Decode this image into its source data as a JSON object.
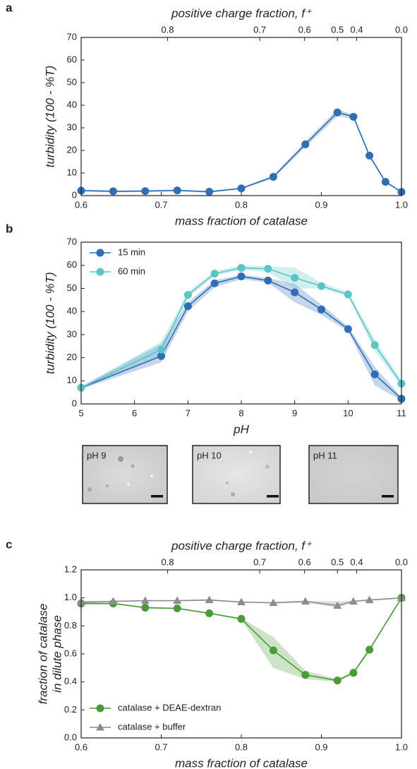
{
  "chart_data": [
    {
      "type": "line",
      "panel": "a",
      "x2_label": "positive charge fraction, f⁺",
      "x_label": "mass fraction of catalase",
      "y_label": [
        "turbidity (100 - %T)"
      ],
      "x": [
        0.6,
        0.64,
        0.68,
        0.72,
        0.76,
        0.8,
        0.84,
        0.88,
        0.92,
        0.94,
        0.96,
        0.98,
        1.0
      ],
      "series": [
        {
          "color": "#2f6db5",
          "marker": "circle",
          "values": [
            2.2,
            1.9,
            2.0,
            2.3,
            1.7,
            3.2,
            8.3,
            22.7,
            36.8,
            34.9,
            17.7,
            6.1,
            1.6
          ],
          "lower": [
            1.8,
            1.5,
            1.6,
            1.9,
            1.3,
            2.8,
            7.6,
            21.5,
            35.2,
            34.0,
            17.0,
            5.6,
            1.3
          ],
          "upper": [
            2.6,
            2.3,
            2.4,
            2.7,
            2.1,
            3.6,
            9.0,
            24.0,
            38.2,
            35.8,
            18.4,
            6.6,
            1.9
          ]
        }
      ],
      "xlim": [
        0.6,
        1.0
      ],
      "xticks": [
        0.6,
        0.7,
        0.8,
        0.9,
        {
          "value": 1.0,
          "label": "1.0"
        }
      ],
      "ylim": [
        0,
        70
      ],
      "yticks": [
        0,
        10,
        20,
        30,
        40,
        50,
        60,
        70
      ],
      "x2ticks": [
        0.8,
        0.7,
        0.6,
        0.5,
        0.4,
        {
          "value": 0.0,
          "label": "0.0"
        }
      ],
      "x2tick_mass_fraction": [
        0.708,
        0.823,
        0.879,
        0.92,
        0.944,
        1.0
      ]
    },
    {
      "type": "line",
      "panel": "b",
      "x_label": "pH",
      "y_label": [
        "turbidity (100 - %T)"
      ],
      "x": [
        5,
        6.5,
        7,
        7.5,
        8,
        8.5,
        9,
        9.5,
        10,
        10.5,
        11
      ],
      "series": [
        {
          "name": "15 min",
          "color": "#2f6db5",
          "marker": "circle",
          "values": [
            7.0,
            20.7,
            42.3,
            52.2,
            55.2,
            53.4,
            48.3,
            40.9,
            32.4,
            12.8,
            2.2
          ],
          "lower": [
            6.5,
            18,
            40,
            50.5,
            54,
            52.5,
            44,
            38.5,
            31.5,
            8,
            1.5
          ],
          "upper": [
            7.5,
            26,
            44,
            53.5,
            56,
            54.5,
            52,
            43,
            33.5,
            16,
            3
          ]
        },
        {
          "name": "60 min",
          "color": "#5bc4c4",
          "marker": "circle",
          "values": [
            7.0,
            23.5,
            47.2,
            56.4,
            58.9,
            58.5,
            54.6,
            51.0,
            47.4,
            25.5,
            8.8
          ],
          "lower": [
            6.5,
            21,
            46,
            55.5,
            58,
            57,
            50,
            50,
            46.5,
            23,
            7.5
          ],
          "upper": [
            7.5,
            27,
            48.5,
            57.5,
            60,
            59.5,
            59,
            52.5,
            48.5,
            28,
            10
          ]
        }
      ],
      "xlim": [
        5,
        11
      ],
      "xticks": [
        5,
        6,
        7,
        8,
        9,
        10,
        11
      ],
      "ylim": [
        0,
        70
      ],
      "yticks": [
        0,
        10,
        20,
        30,
        40,
        50,
        60,
        70
      ],
      "legend": "upper-left"
    },
    {
      "type": "line",
      "panel": "c",
      "x2_label": "positive charge fraction, f⁺",
      "x_label": "mass fraction of catalase",
      "y_label": [
        "fraction of catalase",
        "in dilute phase"
      ],
      "x": [
        0.6,
        0.64,
        0.68,
        0.72,
        0.76,
        0.8,
        0.84,
        0.88,
        0.92,
        0.94,
        0.96,
        1.0
      ],
      "series": [
        {
          "name": "catalase + DEAE-dextran",
          "color": "#4a9a3a",
          "marker": "circle",
          "values": [
            0.96,
            0.96,
            0.93,
            0.925,
            0.89,
            0.85,
            0.625,
            0.45,
            0.41,
            0.465,
            0.63,
            1.0
          ],
          "lower": [
            0.95,
            0.955,
            0.925,
            0.92,
            0.885,
            0.845,
            0.5,
            0.42,
            0.4,
            0.455,
            0.62,
            0.995
          ],
          "upper": [
            0.97,
            0.965,
            0.935,
            0.93,
            0.895,
            0.855,
            0.72,
            0.48,
            0.42,
            0.475,
            0.64,
            1.0
          ]
        },
        {
          "name": "catalase + buffer",
          "color": "#8c8c8c",
          "marker": "triangle",
          "values": [
            0.97,
            0.975,
            0.98,
            0.98,
            0.985,
            0.97,
            0.965,
            0.975,
            0.945,
            0.975,
            0.985,
            1.0
          ],
          "lower": [
            0.965,
            0.97,
            0.975,
            0.975,
            0.98,
            0.965,
            0.96,
            0.965,
            0.93,
            0.97,
            0.98,
            0.995
          ],
          "upper": [
            0.975,
            0.98,
            0.985,
            0.985,
            0.99,
            0.975,
            0.97,
            0.98,
            0.975,
            0.98,
            0.99,
            1.0
          ]
        }
      ],
      "xlim": [
        0.6,
        1.0
      ],
      "xticks": [
        0.6,
        0.7,
        0.8,
        0.9,
        {
          "value": 1.0,
          "label": "1.0"
        }
      ],
      "ylim": [
        0,
        1.2
      ],
      "yticks": [
        {
          "value": 0,
          "label": "0.0"
        },
        0.2,
        0.4,
        0.6,
        0.8,
        {
          "value": 1.0,
          "label": "1.0"
        },
        1.2
      ],
      "x2ticks": [
        0.8,
        0.7,
        0.6,
        0.5,
        0.4,
        {
          "value": 0.0,
          "label": "0.0"
        }
      ],
      "x2tick_mass_fraction": [
        0.708,
        0.823,
        0.879,
        0.92,
        0.944,
        1.0
      ],
      "legend": "lower-left"
    }
  ],
  "micrographs": [
    {
      "label": "pH 9"
    },
    {
      "label": "pH 10"
    },
    {
      "label": "pH 11"
    }
  ]
}
